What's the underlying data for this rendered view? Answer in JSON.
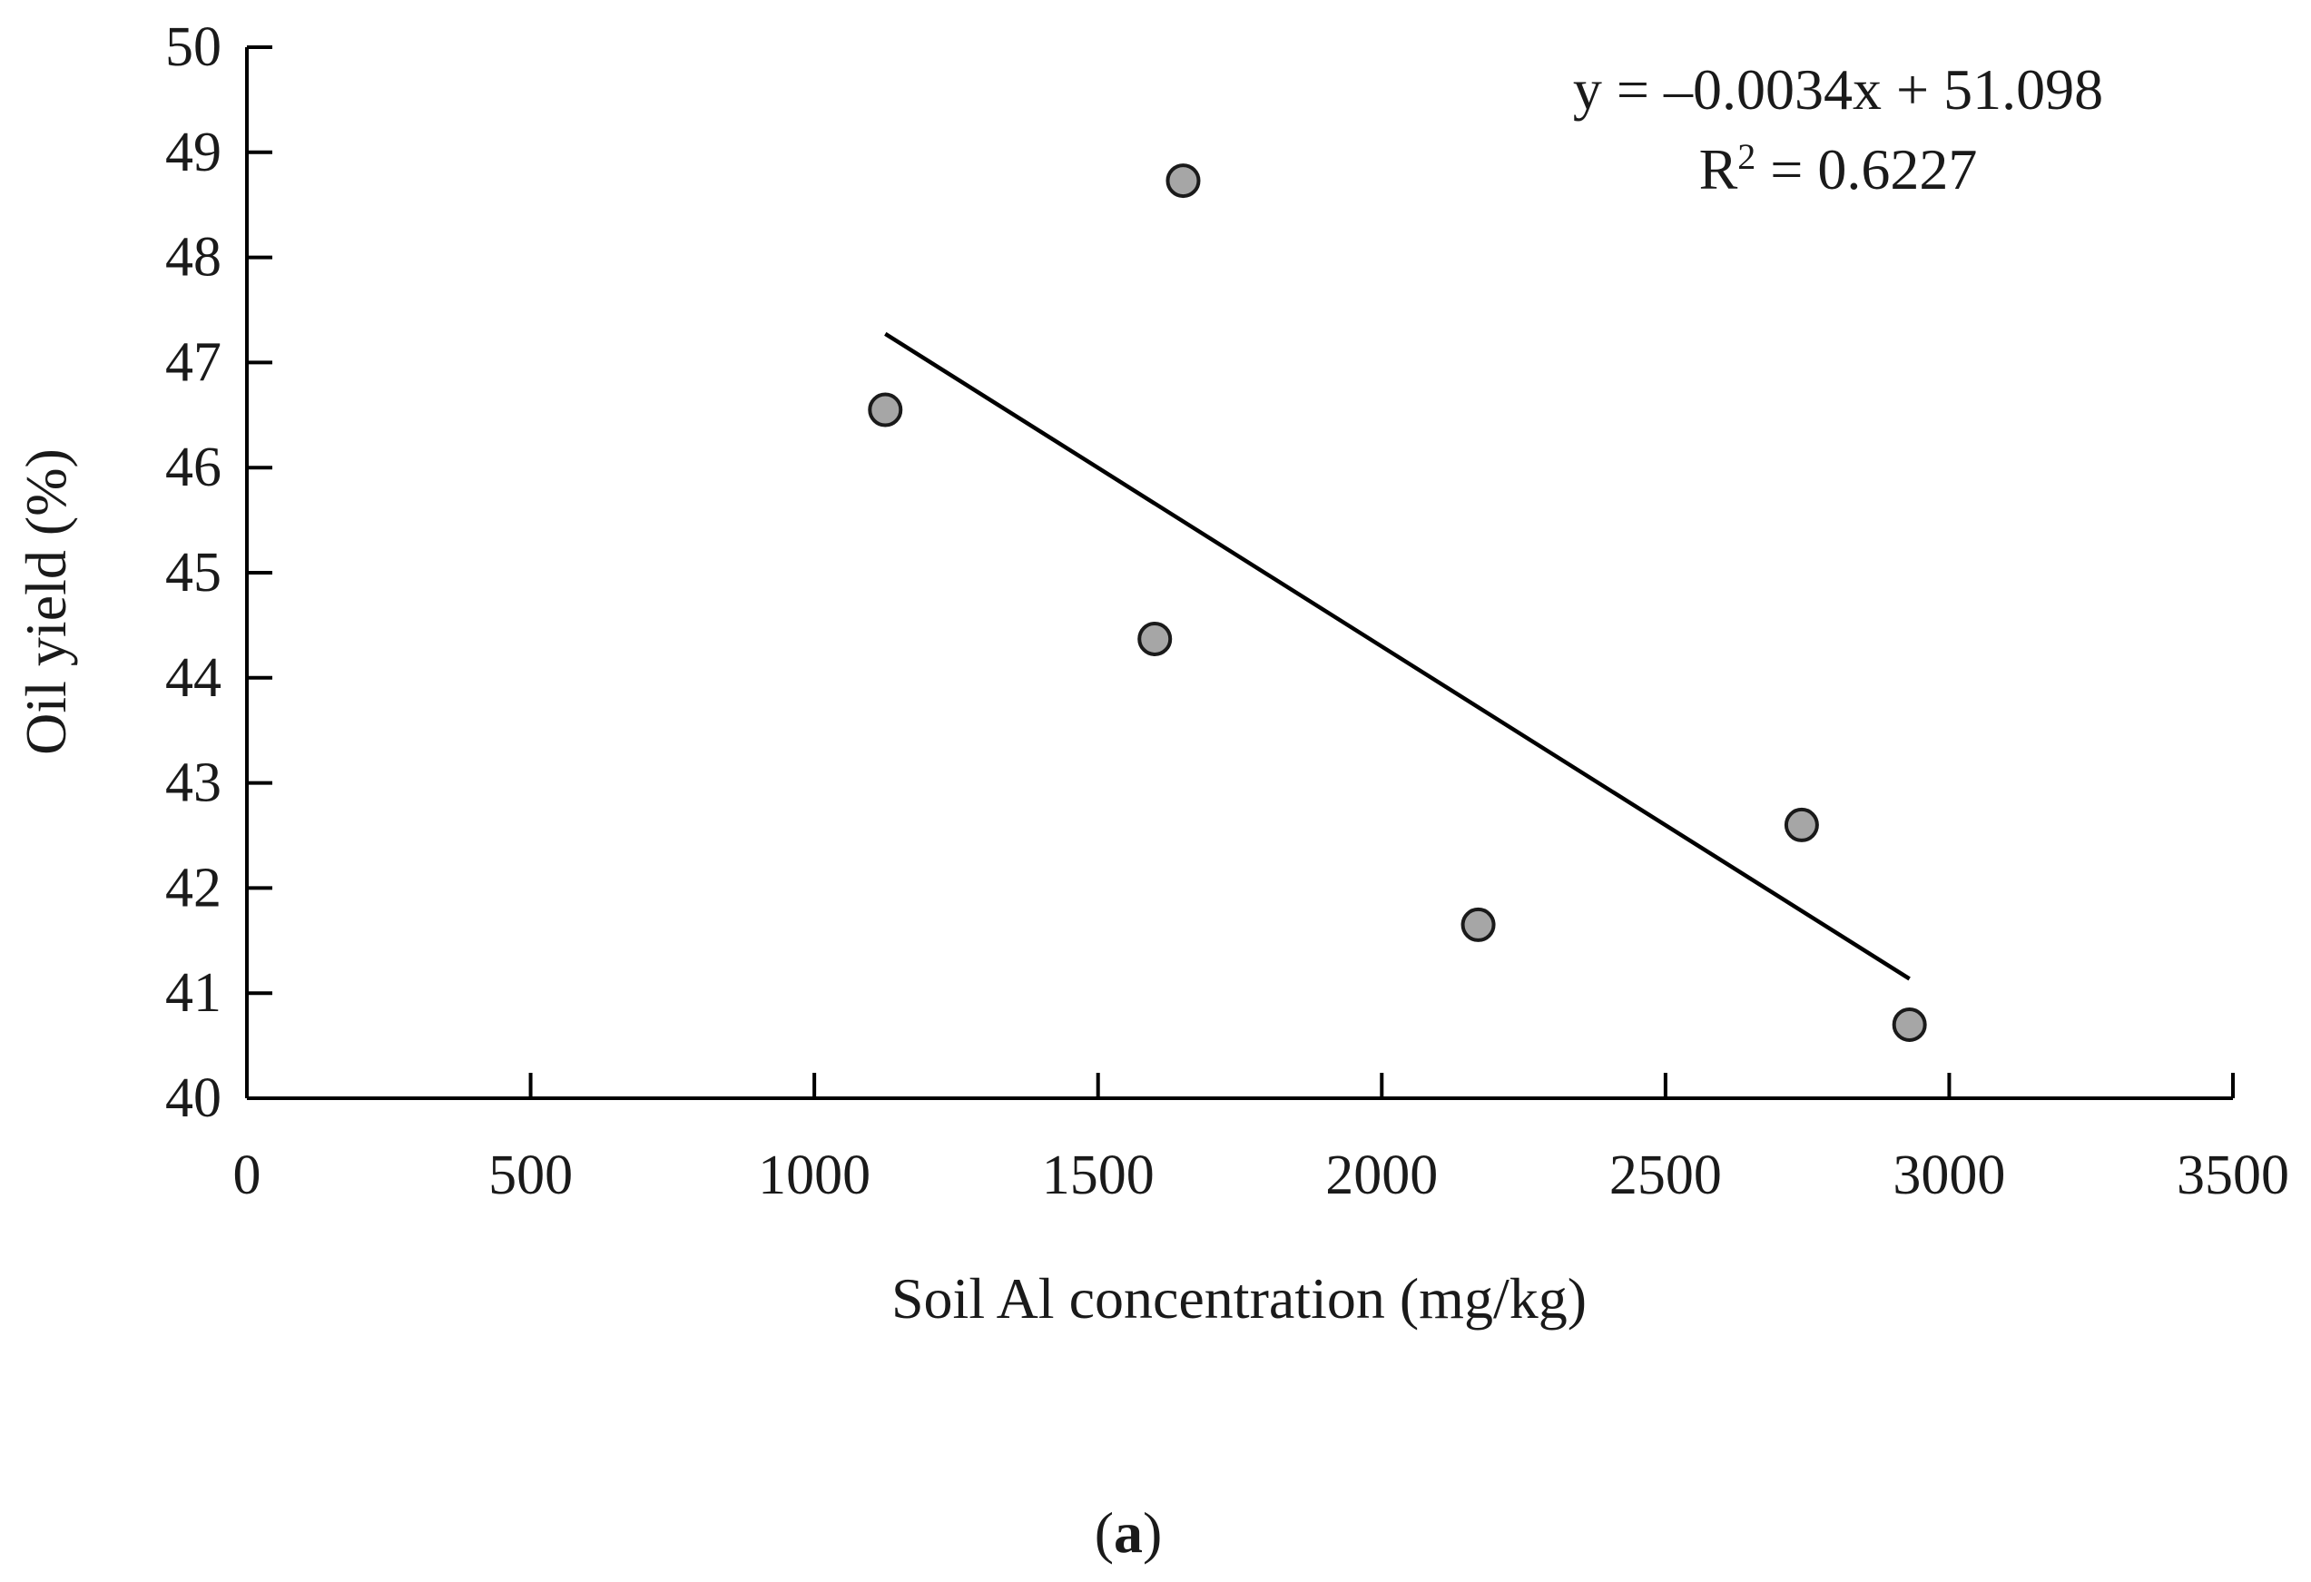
{
  "chart_data": {
    "type": "scatter",
    "xlabel": "Soil Al concentration (mg/kg)",
    "ylabel": "Oil yield (%)",
    "xlim": [
      0,
      3500
    ],
    "ylim": [
      40,
      50
    ],
    "x_ticks": [
      0,
      500,
      1000,
      1500,
      2000,
      2500,
      3000,
      3500
    ],
    "y_ticks": [
      40,
      41,
      42,
      43,
      44,
      45,
      46,
      47,
      48,
      49,
      50
    ],
    "grid": false,
    "points": [
      {
        "x": 1125,
        "y": 46.55
      },
      {
        "x": 1650,
        "y": 48.73
      },
      {
        "x": 1600,
        "y": 44.37
      },
      {
        "x": 2170,
        "y": 41.65
      },
      {
        "x": 2740,
        "y": 42.6
      },
      {
        "x": 2930,
        "y": 40.7
      }
    ],
    "trendline": {
      "slope": -0.0034,
      "intercept": 51.098,
      "x_range": [
        1125,
        2930
      ],
      "equation": "y = –0.0034x + 51.098",
      "r2_prefix": "R",
      "r2_sup": "2",
      "r2_value": " = 0.6227"
    },
    "colors": {
      "marker_fill": "#a6a6a6",
      "marker_stroke": "#1a1a1a",
      "line": "#000000",
      "axis": "#000000"
    },
    "panel_label": "(a)",
    "panel_letter": "a"
  }
}
